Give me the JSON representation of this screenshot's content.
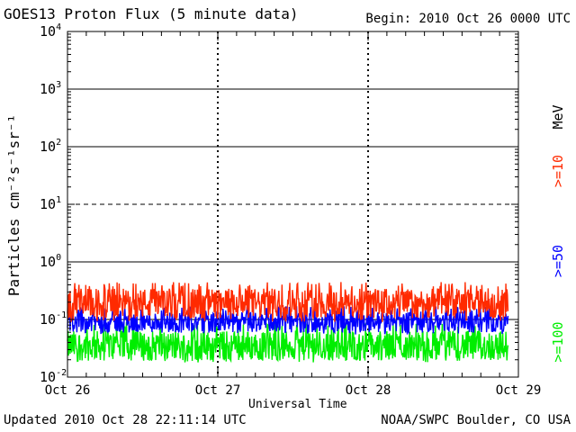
{
  "header": {
    "title": "GOES13 Proton Flux (5 minute data)",
    "begin": "Begin: 2010 Oct 26 0000 UTC"
  },
  "footer": {
    "updated": "Updated 2010 Oct 28 22:11:14 UTC",
    "credit": "NOAA/SWPC Boulder, CO USA"
  },
  "chart_data": {
    "type": "line",
    "title": "GOES13 Proton Flux (5 minute data)",
    "xlabel": "Universal Time",
    "ylabel": "Particles cm⁻²s⁻¹sr⁻¹",
    "yscale": "log",
    "ylim": [
      0.01,
      10000
    ],
    "y_tick_labels": [
      {
        "value": 0.01,
        "base": "10",
        "exp": "-2"
      },
      {
        "value": 0.1,
        "base": "10",
        "exp": "-1"
      },
      {
        "value": 1,
        "base": "10",
        "exp": "0"
      },
      {
        "value": 10,
        "base": "10",
        "exp": "1"
      },
      {
        "value": 100,
        "base": "10",
        "exp": "2"
      },
      {
        "value": 1000,
        "base": "10",
        "exp": "3"
      },
      {
        "value": 10000,
        "base": "10",
        "exp": "4"
      }
    ],
    "x_tick_labels": [
      "Oct 26",
      "Oct 27",
      "Oct 28",
      "Oct 29"
    ],
    "xlim_days": [
      0,
      3
    ],
    "data_end_day": 2.93,
    "grid": {
      "solid_at": [
        1,
        100,
        1000
      ],
      "dashed_at": [
        10
      ],
      "thin_solid_at": [
        0.1
      ]
    },
    "legend": {
      "placement": "right-vertical",
      "unit": "MeV",
      "entries": [
        {
          "label": ">=10",
          "color": "#ff2a00"
        },
        {
          "label": ">=50",
          "color": "#0000ff"
        },
        {
          "label": ">=100",
          "color": "#00ee00"
        }
      ]
    },
    "series": [
      {
        "name": ">=10 MeV",
        "color": "#ff2a00",
        "typical": 0.19,
        "min": 0.09,
        "max": 0.45
      },
      {
        "name": ">=50 MeV",
        "color": "#0000ff",
        "typical": 0.09,
        "min": 0.055,
        "max": 0.17
      },
      {
        "name": ">=100 MeV",
        "color": "#00ee00",
        "typical": 0.035,
        "min": 0.018,
        "max": 0.09
      }
    ]
  }
}
